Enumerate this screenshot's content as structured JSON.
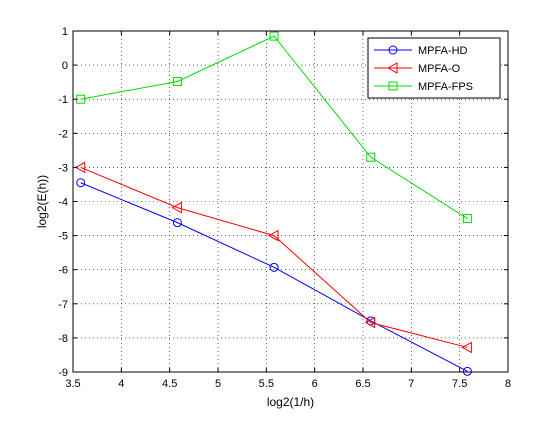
{
  "chart_data": {
    "type": "line",
    "title": "",
    "xlabel": "log2(1/h)",
    "ylabel": "log2(E(h))",
    "xlim": [
      3.5,
      8
    ],
    "ylim": [
      -9,
      1
    ],
    "xticks": [
      3.5,
      4,
      4.5,
      5,
      5.5,
      6,
      6.5,
      7,
      7.5,
      8
    ],
    "yticks": [
      -9,
      -8,
      -7,
      -6,
      -5,
      -4,
      -3,
      -2,
      -1,
      0,
      1
    ],
    "xtick_labels": [
      "3.5",
      "4",
      "4.5",
      "5",
      "5.5",
      "6",
      "6.5",
      "7",
      "7.5",
      "8"
    ],
    "ytick_labels": [
      "-9",
      "-8",
      "-7",
      "-6",
      "-5",
      "-4",
      "-3",
      "-2",
      "-1",
      "0",
      "1"
    ],
    "grid": true,
    "legend_position": "top-right",
    "series": [
      {
        "name": "MPFA-HD",
        "color": "#0000ff",
        "marker": "circle",
        "x": [
          3.58,
          4.58,
          5.58,
          6.58,
          7.58
        ],
        "y": [
          -3.45,
          -4.62,
          -5.93,
          -7.5,
          -8.98
        ]
      },
      {
        "name": "MPFA-O",
        "color": "#ff0000",
        "marker": "triangle-left",
        "x": [
          3.58,
          4.58,
          5.58,
          6.58,
          7.58
        ],
        "y": [
          -3.0,
          -4.18,
          -5.0,
          -7.55,
          -8.28
        ]
      },
      {
        "name": "MPFA-FPS",
        "color": "#00dd00",
        "marker": "square",
        "x": [
          3.58,
          4.58,
          5.58,
          6.58,
          7.58
        ],
        "y": [
          -1.0,
          -0.48,
          0.85,
          -2.7,
          -4.5
        ]
      }
    ]
  }
}
